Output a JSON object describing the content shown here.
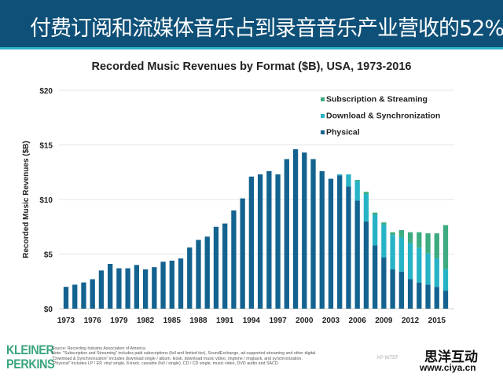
{
  "header": {
    "title": "付费订阅和流媒体音乐占到录音音乐产业营收的52%"
  },
  "chart_data": {
    "type": "bar",
    "stacked": true,
    "title": "Recorded Music Revenues by Format ($B), USA, 1973-2016",
    "xlabel": "",
    "ylabel": "Recorded Music Revenues ($B)",
    "ylim": [
      0,
      20
    ],
    "yticks": [
      {
        "v": 0,
        "label": "$0"
      },
      {
        "v": 5,
        "label": "$5"
      },
      {
        "v": 10,
        "label": "$10"
      },
      {
        "v": 15,
        "label": "$15"
      },
      {
        "v": 20,
        "label": "$20"
      }
    ],
    "xtick_labels": [
      "1973",
      "1976",
      "1979",
      "1982",
      "1985",
      "1988",
      "1991",
      "1994",
      "1997",
      "2000",
      "2003",
      "2006",
      "2009",
      "2012",
      "2015"
    ],
    "grid": true,
    "legend_position": "top-right",
    "categories": [
      1973,
      1974,
      1975,
      1976,
      1977,
      1978,
      1979,
      1980,
      1981,
      1982,
      1983,
      1984,
      1985,
      1986,
      1987,
      1988,
      1989,
      1990,
      1991,
      1992,
      1993,
      1994,
      1995,
      1996,
      1997,
      1998,
      1999,
      2000,
      2001,
      2002,
      2003,
      2004,
      2005,
      2006,
      2007,
      2008,
      2009,
      2010,
      2011,
      2012,
      2013,
      2014,
      2015,
      2016
    ],
    "series": [
      {
        "name": "Physical",
        "color": "#13628f",
        "values": [
          2.0,
          2.2,
          2.4,
          2.7,
          3.5,
          4.1,
          3.7,
          3.7,
          4.0,
          3.6,
          3.8,
          4.3,
          4.4,
          4.6,
          5.6,
          6.3,
          6.6,
          7.5,
          7.8,
          9.0,
          10.1,
          12.1,
          12.3,
          12.6,
          12.3,
          13.7,
          14.6,
          14.3,
          13.7,
          12.6,
          11.9,
          12.2,
          11.2,
          9.9,
          8.0,
          5.8,
          4.7,
          3.6,
          3.4,
          2.7,
          2.4,
          2.2,
          2.0,
          1.65
        ]
      },
      {
        "name": "Download & Synchronization",
        "color": "#26b3c6",
        "values": [
          0,
          0,
          0,
          0,
          0,
          0,
          0,
          0,
          0,
          0,
          0,
          0,
          0,
          0,
          0,
          0,
          0,
          0,
          0,
          0,
          0,
          0,
          0,
          0,
          0,
          0,
          0,
          0,
          0,
          0,
          0,
          0.1,
          1.1,
          1.8,
          2.5,
          2.8,
          3.0,
          3.15,
          3.15,
          3.3,
          3.2,
          2.85,
          2.6,
          2.0
        ]
      },
      {
        "name": "Subscription & Streaming",
        "color": "#3dab80",
        "values": [
          0,
          0,
          0,
          0,
          0,
          0,
          0,
          0,
          0,
          0,
          0,
          0,
          0,
          0,
          0,
          0,
          0,
          0,
          0,
          0,
          0,
          0,
          0,
          0,
          0,
          0,
          0,
          0,
          0,
          0,
          0,
          0,
          0,
          0.1,
          0.2,
          0.2,
          0.2,
          0.25,
          0.65,
          1.0,
          1.4,
          1.85,
          2.3,
          4.0
        ]
      }
    ]
  },
  "footer": {
    "logo": "KLEINER PERKINS",
    "notes": [
      "Source: Recording Industry Association of America",
      "Note: \"Subscription and Streaming\" includes paid subscriptions (full and limited tier), SoundExchange, ad-supported streaming and other digital.",
      "\"Download & Synchronization\" includes download single / album, kiosk, download music video, ringtone / ringback, and synchronization.",
      "\"Physical\" includes LP / EP, vinyl single, 8-track, cassette (full / single), CD / CD single, music video, DVD audio and SACD."
    ],
    "kp_label": "KP INTEF",
    "watermark_title": "思洋互动",
    "watermark_url": "www.ciya.cn"
  }
}
